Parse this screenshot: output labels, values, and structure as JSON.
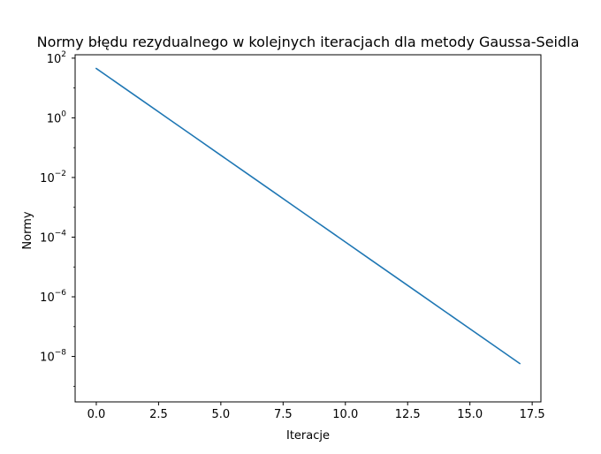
{
  "chart_data": {
    "type": "line",
    "title": "Normy błędu rezydualnego w kolejnych iteracjach dla metody Gaussa-Seidla",
    "xlabel": "Iteracje",
    "ylabel": "Normy",
    "x_scale": "linear",
    "y_scale": "log",
    "xlim": [
      -0.85,
      17.85
    ],
    "ylim": [
      3e-10,
      130
    ],
    "x_ticks": [
      0.0,
      2.5,
      5.0,
      7.5,
      10.0,
      12.5,
      15.0,
      17.5
    ],
    "x_tick_labels": [
      "0.0",
      "2.5",
      "5.0",
      "7.5",
      "10.0",
      "12.5",
      "15.0",
      "17.5"
    ],
    "y_tick_exponents": [
      2,
      0,
      -2,
      -4,
      -6,
      -8
    ],
    "y_tick_base": "10",
    "y_tick_minus": "−",
    "grid": false,
    "legend": "none",
    "series": [
      {
        "color": "#1f77b4",
        "x": [
          0,
          1,
          2,
          3,
          4,
          5,
          6,
          7,
          8,
          9,
          10,
          11,
          12,
          13,
          14,
          15,
          16,
          17
        ],
        "y": [
          45,
          11.8,
          3.1,
          0.81,
          0.212,
          0.0555,
          0.01455,
          0.00381,
          0.000998,
          0.000262,
          6.85e-05,
          1.795e-05,
          4.7e-06,
          1.232e-06,
          3.23e-07,
          8.46e-08,
          2.22e-08,
          5.8e-09
        ]
      }
    ]
  }
}
